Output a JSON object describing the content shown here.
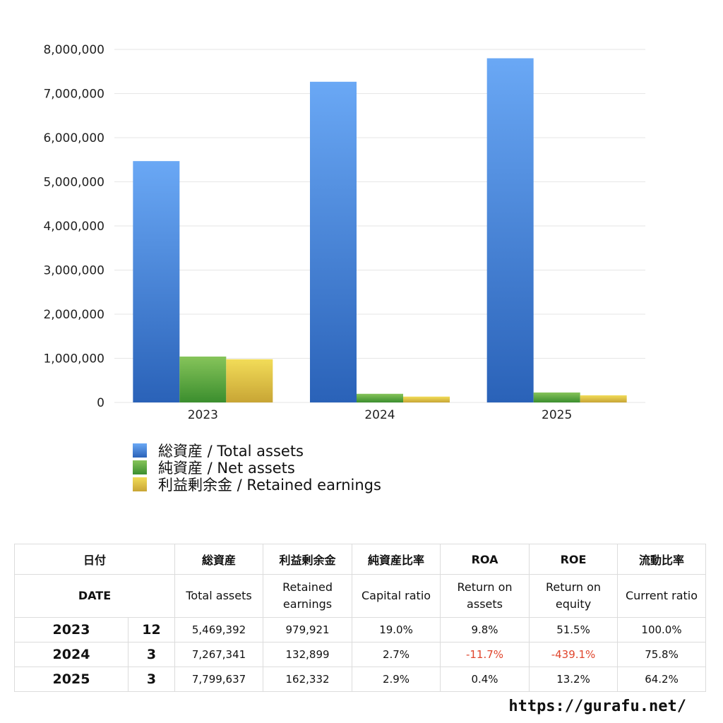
{
  "chart_data": {
    "type": "bar",
    "categories": [
      "2023",
      "2024",
      "2025"
    ],
    "series": [
      {
        "name": "総資産 / Total assets",
        "values": [
          5469392,
          7267341,
          7799637
        ]
      },
      {
        "name": "純資産 / Net assets",
        "values": [
          1040000,
          196000,
          226000
        ]
      },
      {
        "name": "利益剰余金 / Retained earnings",
        "values": [
          979921,
          132899,
          162332
        ]
      }
    ],
    "ylim": [
      0,
      8000000
    ],
    "yticks": [
      "0",
      "1,000,000",
      "2,000,000",
      "3,000,000",
      "4,000,000",
      "5,000,000",
      "6,000,000",
      "7,000,000",
      "8,000,000"
    ],
    "ytick_values": [
      0,
      1000000,
      2000000,
      3000000,
      4000000,
      5000000,
      6000000,
      7000000,
      8000000
    ],
    "grid": true,
    "legend_position": "bottom-left",
    "colors": {
      "total_assets": [
        "#6aa8f5",
        "#2a62b8"
      ],
      "net_assets": [
        "#86c45a",
        "#3b8e2e"
      ],
      "retained_earnings": [
        "#f2dc58",
        "#c8a535"
      ]
    }
  },
  "legend": [
    {
      "label": "総資産 / Total assets"
    },
    {
      "label": "純資産 / Net assets"
    },
    {
      "label": "利益剰余金 / Retained earnings"
    }
  ],
  "table": {
    "headers_jp": {
      "date": "日付",
      "total_assets": "総資産",
      "retained": "利益剰余金",
      "capital_ratio": "純資産比率",
      "roa": "ROA",
      "roe": "ROE",
      "current_ratio": "流動比率"
    },
    "headers_en": {
      "date": "DATE",
      "total_assets": "Total assets",
      "retained_1": "Retained",
      "retained_2": "earnings",
      "capital_ratio": "Capital ratio",
      "roa_1": "Return on",
      "roa_2": "assets",
      "roe_1": "Return on",
      "roe_2": "equity",
      "current_ratio": "Current ratio"
    },
    "rows": [
      {
        "year": "2023",
        "month": "12",
        "total_assets": "5,469,392",
        "retained": "979,921",
        "capital_ratio": "19.0%",
        "roa": "9.8%",
        "roe": "51.5%",
        "current_ratio": "100.0%"
      },
      {
        "year": "2024",
        "month": "3",
        "total_assets": "7,267,341",
        "retained": "132,899",
        "capital_ratio": "2.7%",
        "roa": "-11.7%",
        "roe": "-439.1%",
        "current_ratio": "75.8%"
      },
      {
        "year": "2025",
        "month": "3",
        "total_assets": "7,799,637",
        "retained": "162,332",
        "capital_ratio": "2.9%",
        "roa": "0.4%",
        "roe": "13.2%",
        "current_ratio": "64.2%"
      }
    ]
  },
  "footer": {
    "url": "https://gurafu.net/"
  }
}
